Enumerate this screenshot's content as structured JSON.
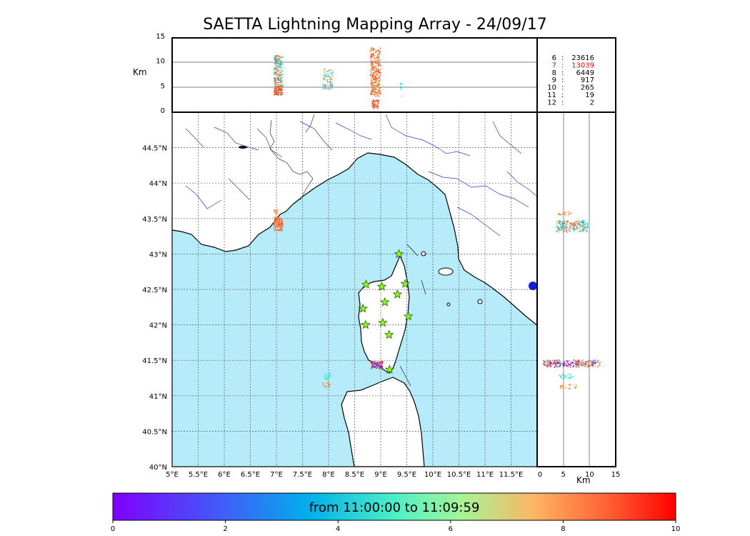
{
  "title": "SAETTA Lightning Mapping Array - 24/09/17",
  "top_panel": {
    "ylabel": "Km",
    "yticks": [
      "0",
      "5",
      "10",
      "15"
    ]
  },
  "right_panel": {
    "xlabel": "Km",
    "xticks": [
      "0",
      "5",
      "10",
      "15"
    ]
  },
  "stats": [
    {
      "k": "6",
      "v": "23616",
      "highlight": false
    },
    {
      "k": "7",
      "v": "13039",
      "highlight": true
    },
    {
      "k": "8",
      "v": "6449",
      "highlight": false
    },
    {
      "k": "9",
      "v": "917",
      "highlight": false
    },
    {
      "k": "10",
      "v": "265",
      "highlight": false
    },
    {
      "k": "11",
      "v": "19",
      "highlight": false
    },
    {
      "k": "12",
      "v": "2",
      "highlight": false
    }
  ],
  "map": {
    "lat_labels": [
      "40°N",
      "40.5°N",
      "41°N",
      "41.5°N",
      "42°N",
      "42.5°N",
      "43°N",
      "43.5°N",
      "44°N",
      "44.5°N"
    ],
    "lon_labels": [
      "5°E",
      "5.5°E",
      "6°E",
      "6.5°E",
      "7°E",
      "7.5°E",
      "8°E",
      "8.5°E",
      "9°E",
      "9.5°E",
      "10°E",
      "10.5°E",
      "11°E",
      "11.5°E"
    ],
    "lon_range": [
      5.0,
      12.0
    ],
    "lat_range": [
      40.0,
      45.0
    ],
    "colors": {
      "sea": "#b6ecfa",
      "land": "#ffffff",
      "rivers": "#3333cc",
      "borders": "#333333",
      "grid": "#555555"
    },
    "stations": [
      {
        "lon": 9.35,
        "lat": 43.0
      },
      {
        "lon": 8.72,
        "lat": 42.57
      },
      {
        "lon": 9.02,
        "lat": 42.54
      },
      {
        "lon": 9.47,
        "lat": 42.58
      },
      {
        "lon": 9.32,
        "lat": 42.43
      },
      {
        "lon": 9.08,
        "lat": 42.32
      },
      {
        "lon": 8.66,
        "lat": 42.23
      },
      {
        "lon": 9.53,
        "lat": 42.12
      },
      {
        "lon": 9.04,
        "lat": 42.03
      },
      {
        "lon": 8.71,
        "lat": 42.0
      },
      {
        "lon": 9.16,
        "lat": 41.86
      },
      {
        "lon": 9.17,
        "lat": 41.37
      }
    ]
  },
  "colorbar": {
    "label": "from 11:00:00 to 11:09:59",
    "ticks": [
      "0",
      "2",
      "4",
      "6",
      "8",
      "10"
    ],
    "range": [
      0,
      10
    ]
  }
}
